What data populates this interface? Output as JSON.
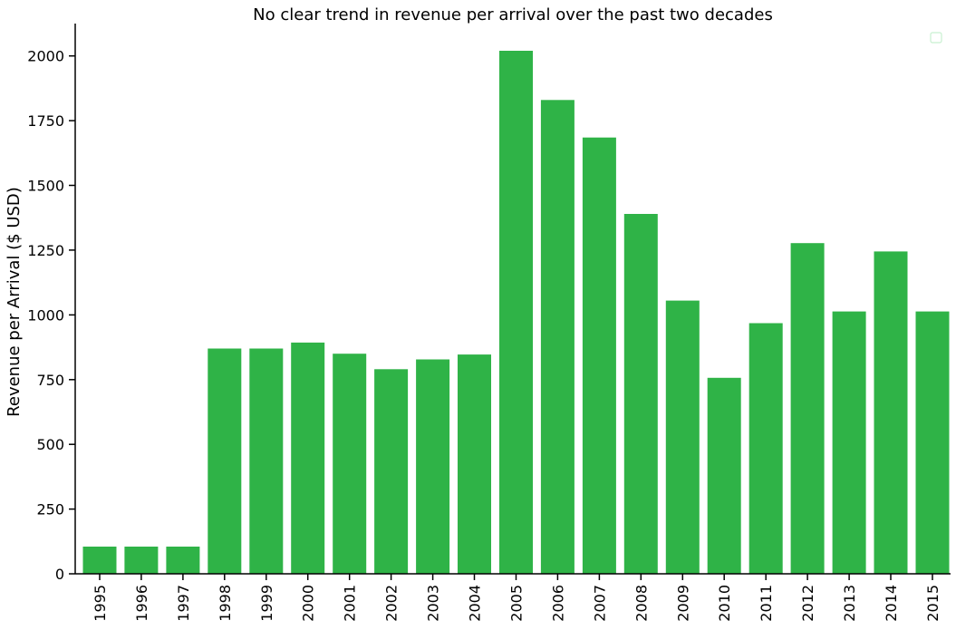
{
  "chart_data": {
    "type": "bar",
    "title": "No clear trend in revenue per arrival over the past two decades",
    "xlabel": "",
    "ylabel": "Revenue per Arrival ($ USD)",
    "categories": [
      "1995",
      "1996",
      "1997",
      "1998",
      "1999",
      "2000",
      "2001",
      "2002",
      "2003",
      "2004",
      "2005",
      "2006",
      "2007",
      "2008",
      "2009",
      "2010",
      "2011",
      "2012",
      "2013",
      "2014",
      "2015"
    ],
    "values": [
      105,
      105,
      105,
      870,
      870,
      893,
      850,
      790,
      828,
      847,
      2020,
      1830,
      1685,
      1390,
      1055,
      757,
      968,
      1277,
      1013,
      1245,
      1013
    ],
    "ylim": [
      0,
      2125
    ],
    "yticks": [
      0,
      250,
      500,
      750,
      1000,
      1250,
      1500,
      1750,
      2000
    ],
    "x_tick_rotation": "vertical",
    "bar_color": "#2fb347",
    "legend": {
      "placement": "top-right",
      "entries": []
    },
    "grid": false
  }
}
